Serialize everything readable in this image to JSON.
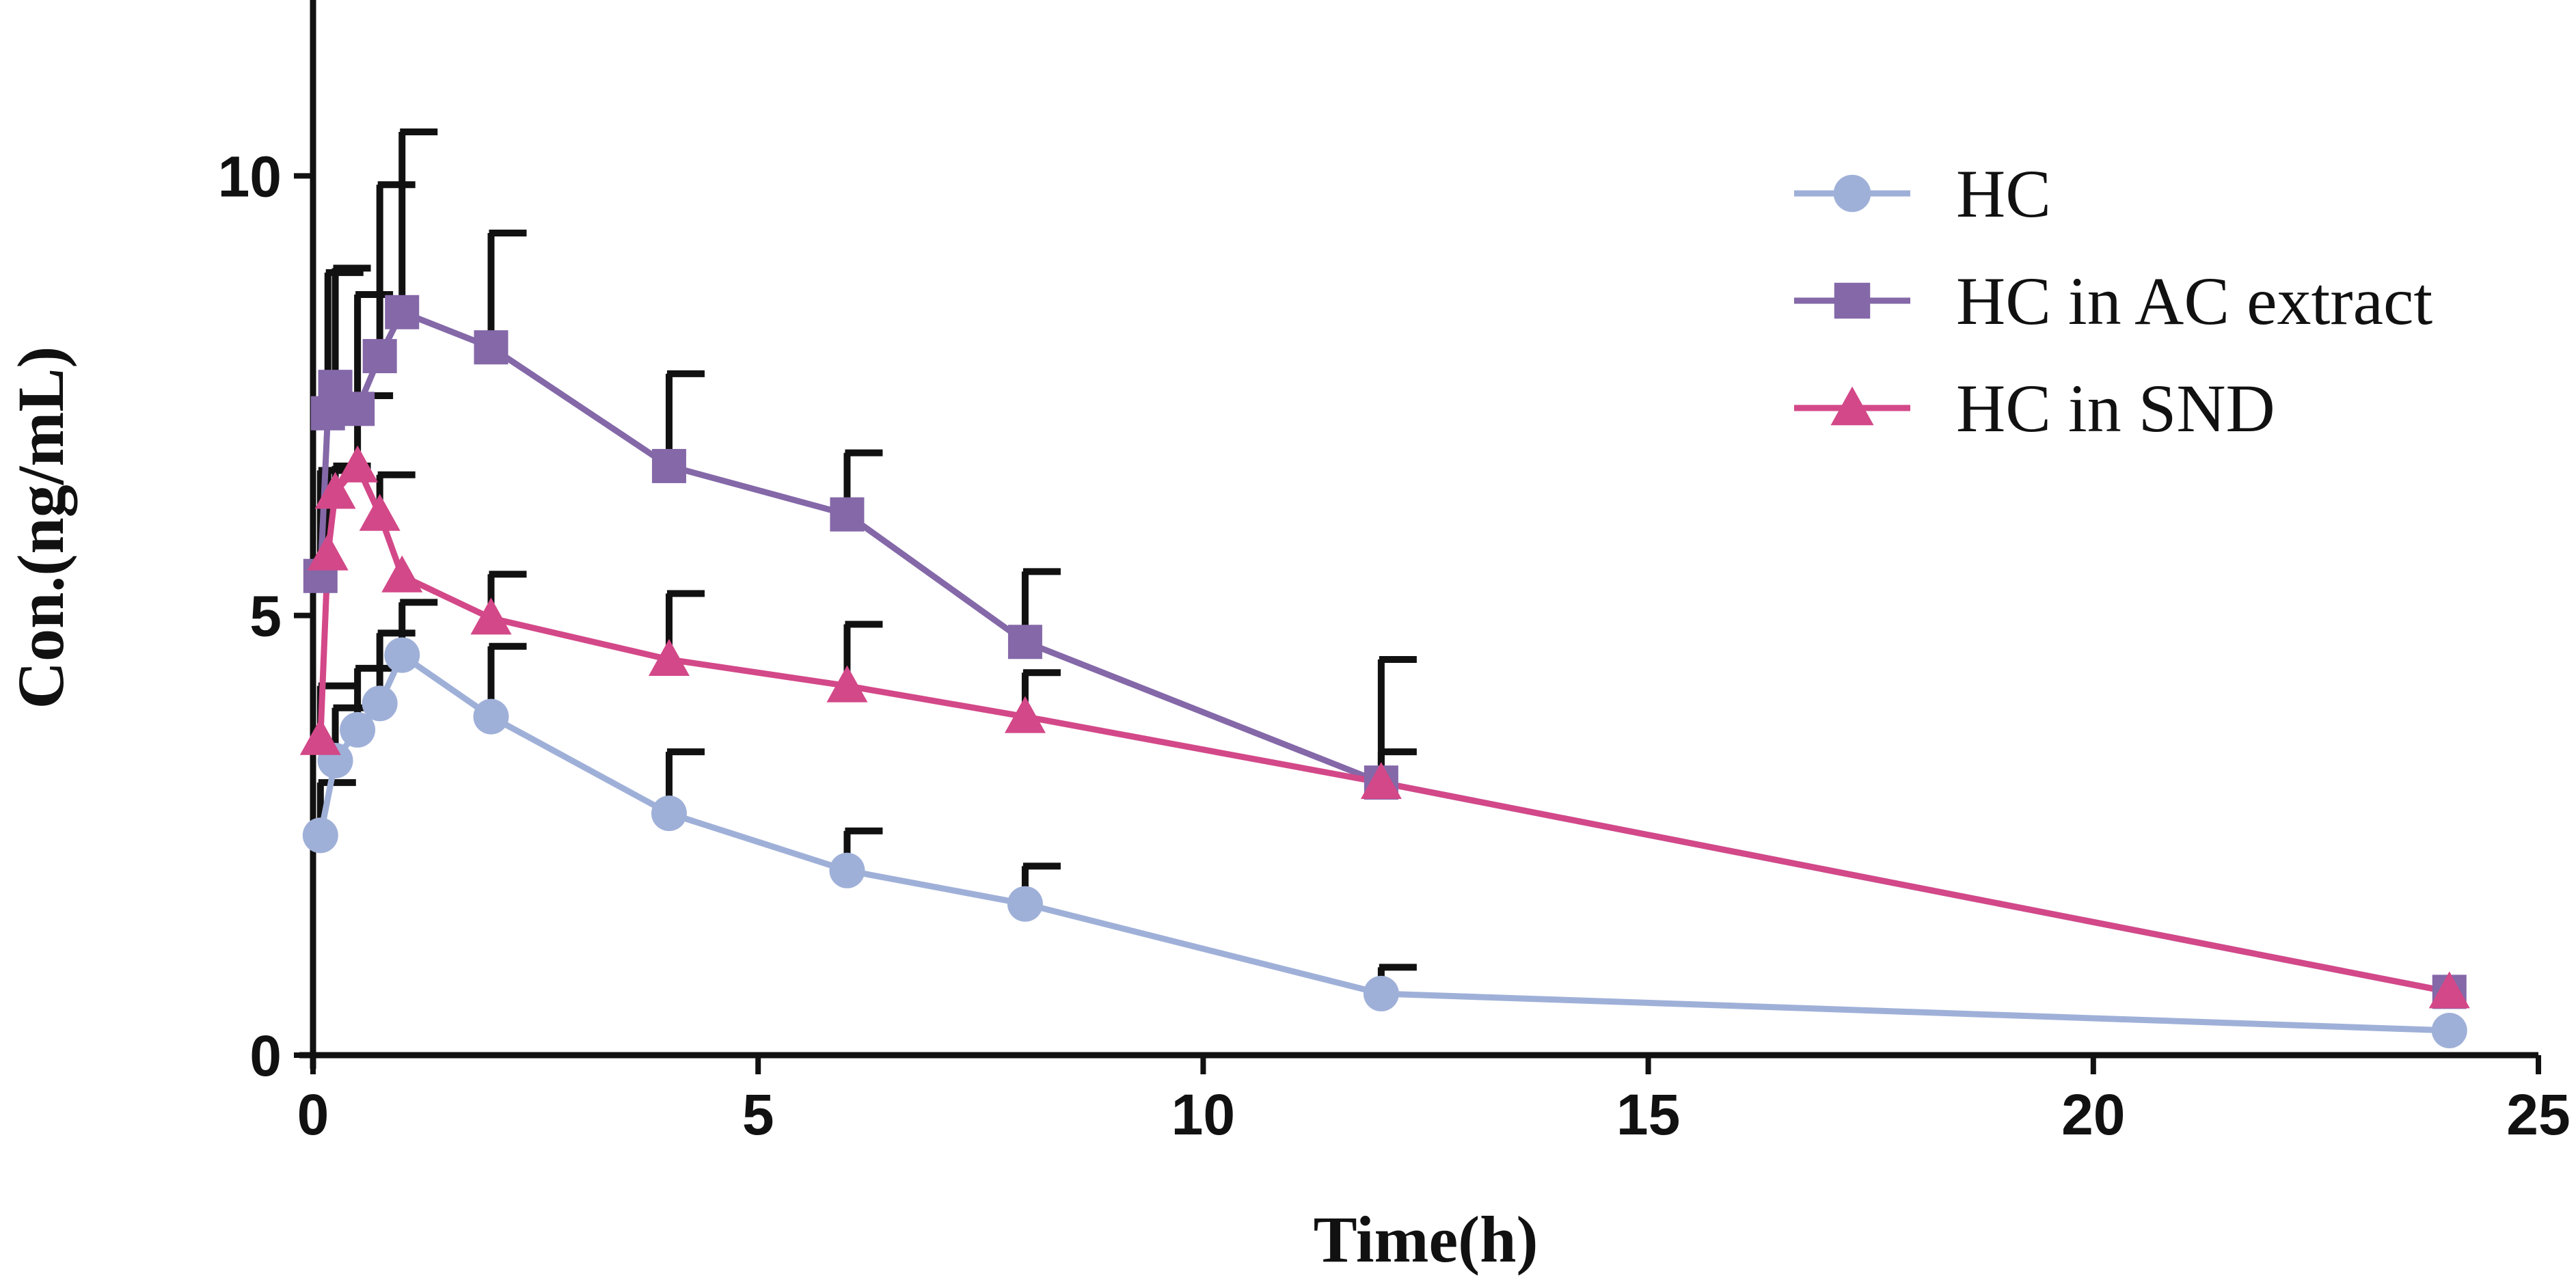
{
  "chart_data": {
    "type": "line",
    "title": "",
    "xlabel": "Time(h)",
    "ylabel": "Con.(ng/mL)",
    "xlim": [
      0,
      25
    ],
    "ylim": [
      0,
      12
    ],
    "xticks": [
      0,
      5,
      10,
      15,
      20,
      25
    ],
    "yticks": [
      0,
      5,
      10
    ],
    "xtick_labels": [
      "0",
      "5",
      "10",
      "15",
      "20",
      "25"
    ],
    "ytick_labels": [
      "0",
      "5",
      "10"
    ],
    "legend_position": "top-right",
    "grid": false,
    "series": [
      {
        "name": "HC",
        "color": "#9fb0d8",
        "marker": "circle",
        "x": [
          0.083,
          0.25,
          0.5,
          0.75,
          1,
          2,
          4,
          6,
          8,
          12,
          24
        ],
        "y": [
          2.5,
          3.35,
          3.7,
          4.0,
          4.55,
          3.85,
          2.75,
          2.1,
          1.72,
          0.7,
          0.28
        ],
        "err": [
          0.6,
          0.6,
          0.7,
          0.8,
          0.6,
          0.8,
          0.7,
          0.45,
          0.43,
          0.3,
          0.0
        ]
      },
      {
        "name": "HC in AC extract",
        "color": "#8468a8",
        "marker": "square",
        "x": [
          0.083,
          0.167,
          0.25,
          0.5,
          0.75,
          1,
          2,
          4,
          6,
          8,
          12,
          24
        ],
        "y": [
          5.45,
          7.3,
          7.6,
          7.35,
          7.95,
          8.45,
          8.05,
          6.7,
          6.15,
          4.7,
          3.1,
          0.72
        ],
        "err": [
          1.2,
          1.6,
          1.35,
          1.3,
          1.95,
          2.05,
          1.3,
          1.05,
          0.7,
          0.8,
          1.4,
          0.0
        ]
      },
      {
        "name": "HC in SND",
        "color": "#d34888",
        "marker": "triangle",
        "x": [
          0.083,
          0.167,
          0.25,
          0.5,
          0.75,
          1,
          2,
          4,
          6,
          8,
          12,
          24
        ],
        "y": [
          3.6,
          5.7,
          6.4,
          6.7,
          6.15,
          5.45,
          4.97,
          4.5,
          4.2,
          3.85,
          3.1,
          0.72
        ],
        "err": [
          0.6,
          0.95,
          0.3,
          0.8,
          0.45,
          0.0,
          0.5,
          0.75,
          0.7,
          0.5,
          0.35,
          0.0
        ]
      }
    ]
  }
}
